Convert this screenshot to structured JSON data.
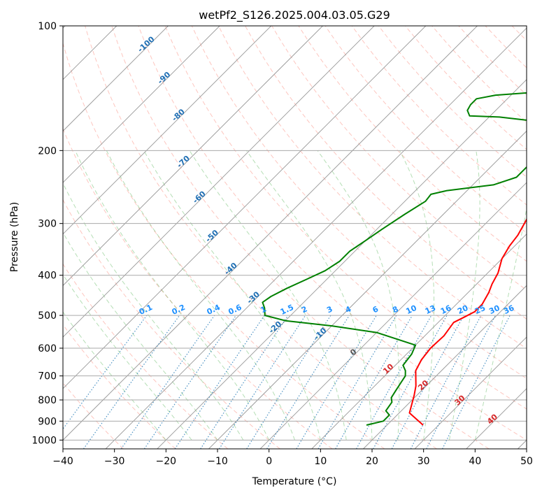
{
  "chart_data": {
    "type": "line",
    "title": "wetPf2_S126.2025.004.03.05.G29",
    "xlabel": "Temperature (°C)",
    "ylabel": "Pressure (hPa)",
    "xlim": [
      -40,
      50
    ],
    "ylim": [
      1050,
      100
    ],
    "y_scale": "log",
    "x_ticks": [
      "−40",
      "−30",
      "−20",
      "−10",
      "0",
      "10",
      "20",
      "30",
      "40",
      "50"
    ],
    "x_tick_values": [
      -40,
      -30,
      -20,
      -10,
      0,
      10,
      20,
      30,
      40,
      50
    ],
    "y_ticks": [
      100,
      200,
      300,
      400,
      500,
      600,
      700,
      800,
      900,
      1000
    ],
    "grid": true,
    "series": [
      {
        "color": "#ff0000",
        "points": [
          [
            27,
            920
          ],
          [
            22,
            860
          ],
          [
            19.5,
            780
          ],
          [
            18,
            740
          ],
          [
            15,
            680
          ],
          [
            14,
            640
          ],
          [
            13.5,
            600
          ],
          [
            13.7,
            560
          ],
          [
            13,
            520
          ],
          [
            14,
            505
          ],
          [
            15,
            490
          ],
          [
            15,
            470
          ],
          [
            14,
            440
          ],
          [
            13,
            420
          ],
          [
            12,
            395
          ],
          [
            10,
            365
          ],
          [
            9,
            340
          ],
          [
            8.5,
            320
          ],
          [
            7,
            290
          ],
          [
            5.5,
            265
          ],
          [
            4,
            240
          ],
          [
            2.5,
            215
          ],
          [
            1.5,
            196
          ],
          [
            1.5,
            186
          ],
          [
            3,
            175
          ],
          [
            6,
            165
          ],
          [
            8.5,
            157
          ],
          [
            9.5,
            150
          ],
          [
            9.3,
            143
          ],
          [
            9,
            133
          ],
          [
            9,
            125
          ],
          [
            10,
            118
          ],
          [
            11,
            112
          ],
          [
            11.5,
            107
          ],
          [
            11.8,
            100
          ]
        ]
      },
      {
        "color": "#008000",
        "points": [
          [
            16,
            920
          ],
          [
            18.5,
            900
          ],
          [
            18.5,
            870
          ],
          [
            17,
            850
          ],
          [
            16.5,
            810
          ],
          [
            15.5,
            790
          ],
          [
            15,
            760
          ],
          [
            14.5,
            730
          ],
          [
            14,
            700
          ],
          [
            13,
            680
          ],
          [
            11.5,
            660
          ],
          [
            11,
            620
          ],
          [
            10,
            590
          ],
          [
            0,
            550
          ],
          [
            -10,
            530
          ],
          [
            -20,
            515
          ],
          [
            -25,
            500
          ],
          [
            -26.5,
            480
          ],
          [
            -28,
            465
          ],
          [
            -27.5,
            450
          ],
          [
            -26,
            430
          ],
          [
            -24,
            410
          ],
          [
            -22,
            390
          ],
          [
            -21,
            370
          ],
          [
            -21,
            350
          ],
          [
            -20,
            330
          ],
          [
            -19,
            310
          ],
          [
            -17.5,
            285
          ],
          [
            -16,
            265
          ],
          [
            -16.3,
            255
          ],
          [
            -14,
            250
          ],
          [
            -6,
            242
          ],
          [
            -3,
            232
          ],
          [
            -3,
            210
          ],
          [
            -2,
            198
          ],
          [
            -2,
            190
          ],
          [
            -4,
            180
          ],
          [
            -8,
            173
          ],
          [
            -12,
            169
          ],
          [
            -18,
            166
          ],
          [
            -24,
            165
          ],
          [
            -25.5,
            160
          ],
          [
            -26,
            155
          ],
          [
            -26,
            150
          ],
          [
            -23,
            147
          ],
          [
            -17,
            145
          ],
          [
            -15.5,
            140
          ],
          [
            -15,
            135
          ],
          [
            -15,
            130
          ],
          [
            -16,
            125
          ],
          [
            -15,
            120
          ],
          [
            -13,
            118
          ],
          [
            -8,
            117
          ],
          [
            -4,
            115
          ],
          [
            -2,
            110
          ],
          [
            0,
            105
          ],
          [
            1,
            100
          ]
        ]
      }
    ],
    "isotherm_labels": [
      "-100",
      "-90",
      "-80",
      "-70",
      "-60",
      "-50",
      "-40",
      "-30",
      "-20",
      "-10",
      "0",
      "10",
      "20",
      "30",
      "40"
    ],
    "mixing_ratio_labels": [
      "0.1",
      "0.2",
      "0.4",
      "0.6",
      "1",
      "1.5",
      "2",
      "3",
      "4",
      "6",
      "8",
      "10",
      "13",
      "16",
      "20",
      "25",
      "30",
      "36"
    ]
  }
}
